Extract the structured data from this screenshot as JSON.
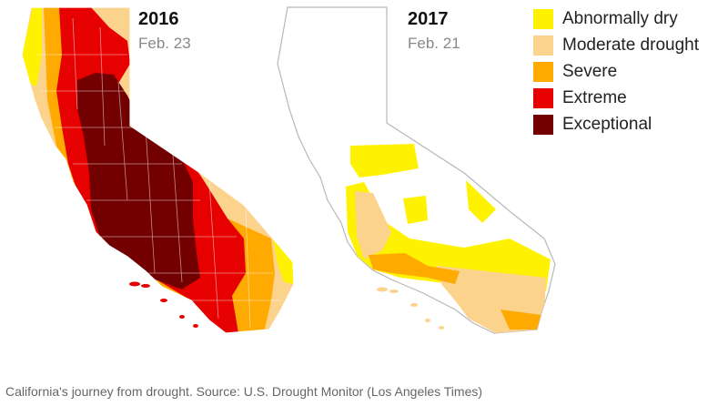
{
  "maps": [
    {
      "year": "2016",
      "date": "Feb. 23"
    },
    {
      "year": "2017",
      "date": "Feb. 21"
    }
  ],
  "legend": [
    {
      "label": "Abnormally dry",
      "color": "#fff200"
    },
    {
      "label": "Moderate drought",
      "color": "#fcd38c"
    },
    {
      "label": "Severe",
      "color": "#ffaa00"
    },
    {
      "label": "Extreme",
      "color": "#e60000"
    },
    {
      "label": "Exceptional",
      "color": "#730000"
    }
  ],
  "caption": "California's journey from drought. Source: U.S. Drought Monitor (Los Angeles Times)"
}
